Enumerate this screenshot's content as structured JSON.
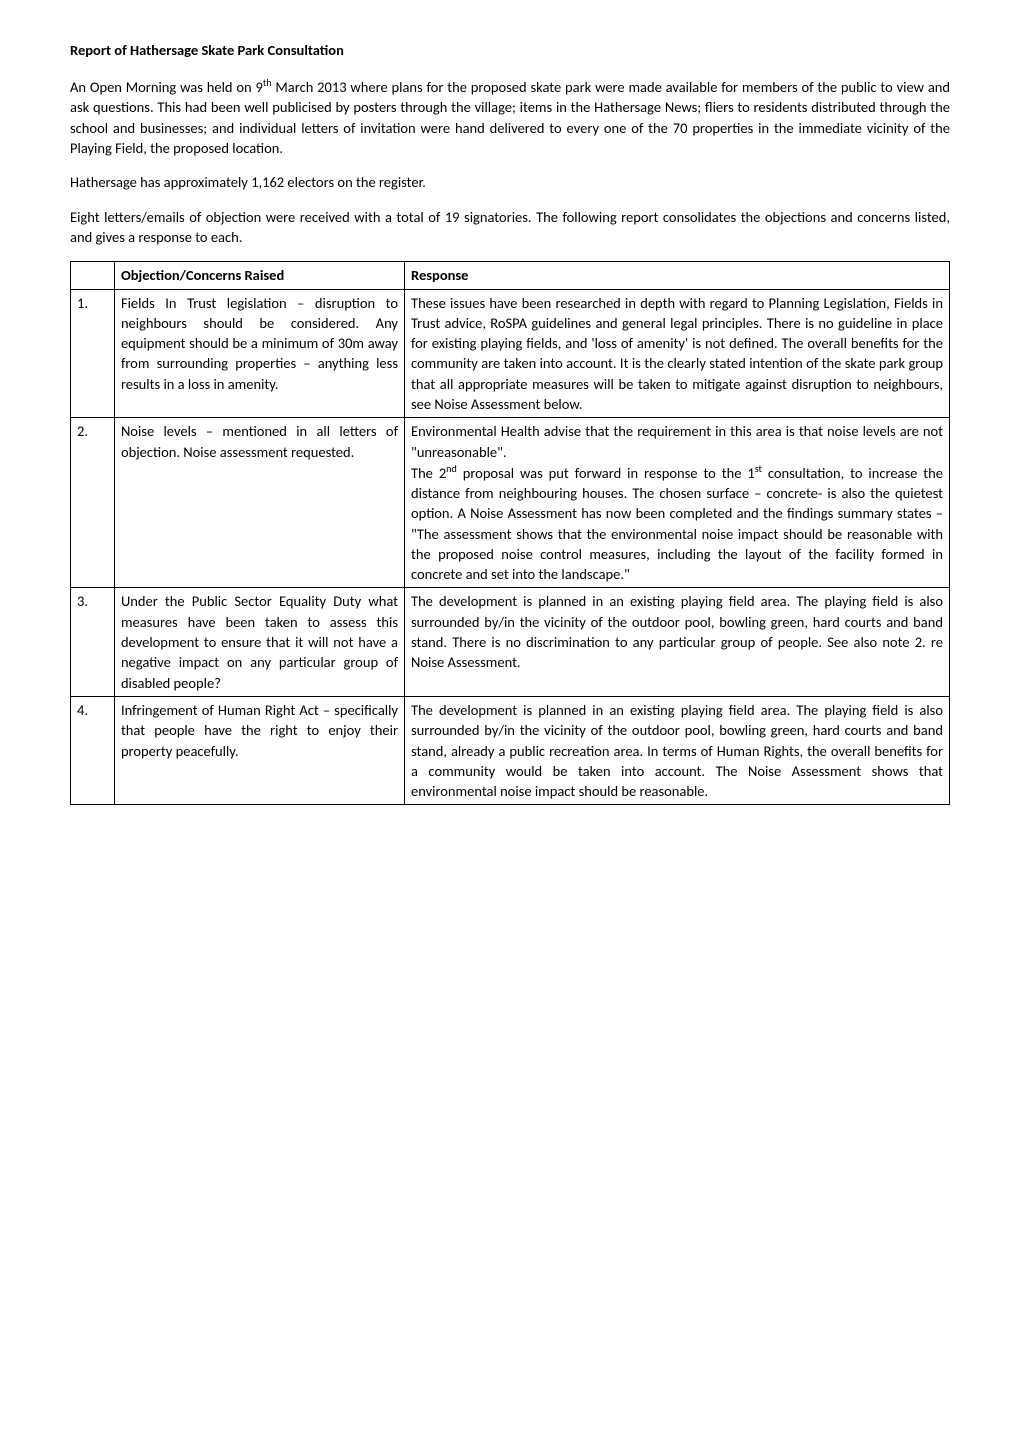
{
  "title": "Report of Hathersage Skate Park Consultation",
  "intro": {
    "p1a": "An Open Morning was held on 9",
    "p1sup": "th",
    "p1b": " March 2013 where plans for the proposed skate park were made available for members of the public to view and ask questions. This had been well publicised by posters through the village; items in the Hathersage News; fliers to residents distributed through the school and businesses; and individual letters of invitation were hand delivered to every one of the 70 properties in the immediate vicinity of the Playing Field, the proposed location.",
    "p2": "Hathersage has approximately 1,162 electors on the register.",
    "p3": "Eight letters/emails of objection were received with a total of 19 signatories. The following report consolidates the objections and concerns listed, and gives a response to each."
  },
  "table": {
    "header": {
      "col1": "",
      "col2": "Objection/Concerns Raised",
      "col3": "Response"
    },
    "rows": [
      {
        "num": "1.",
        "objection": "Fields In Trust legislation – disruption to neighbours should be considered. Any equipment should be a minimum of 30m away from surrounding properties – anything less results in a loss in amenity.",
        "response": "These issues have been researched in depth with regard to Planning Legislation, Fields in Trust advice, RoSPA guidelines and general legal principles. There is no guideline in place for existing playing fields, and 'loss of amenity' is not defined. The overall benefits for the community are taken into account. It is the clearly stated intention of the skate park group that all appropriate measures will be taken to mitigate against disruption to neighbours, see Noise Assessment below."
      },
      {
        "num": "2.",
        "objection": "Noise levels – mentioned in all letters of objection. Noise assessment requested.",
        "response_parts": {
          "a": "Environmental Health advise that the requirement in this area is that noise levels are not \"unreasonable\".",
          "b1": "The 2",
          "b1sup": "nd",
          "b2": " proposal was put forward in response to the 1",
          "b2sup": "st",
          "b3": " consultation, to increase the distance from neighbouring houses. The chosen surface – concrete- is also the quietest option. A Noise Assessment has now been completed and the findings summary states – \"The assessment shows that the environmental noise impact should be reasonable with the proposed noise control measures, including the layout of the facility formed in concrete and set into the landscape.\""
        }
      },
      {
        "num": "3.",
        "objection": "Under the Public Sector Equality Duty what measures have been taken to assess this development to ensure that it will not have a negative impact on any particular group of disabled people?",
        "response": "The development is planned in an existing playing field area. The playing field is also surrounded by/in the vicinity of the outdoor pool, bowling green, hard courts and band stand. There is no discrimination to any particular group of people. See also note 2. re Noise Assessment."
      },
      {
        "num": "4.",
        "objection": "Infringement of Human Right Act – specifically that people have the right to enjoy their property peacefully.",
        "response": "The development is planned in an existing playing field area. The playing field is also surrounded by/in the vicinity of the outdoor pool, bowling green, hard courts and band stand, already a public recreation area. In terms of Human Rights, the overall benefits for a community would be taken into account. The Noise Assessment shows that environmental noise impact should be reasonable."
      }
    ]
  }
}
